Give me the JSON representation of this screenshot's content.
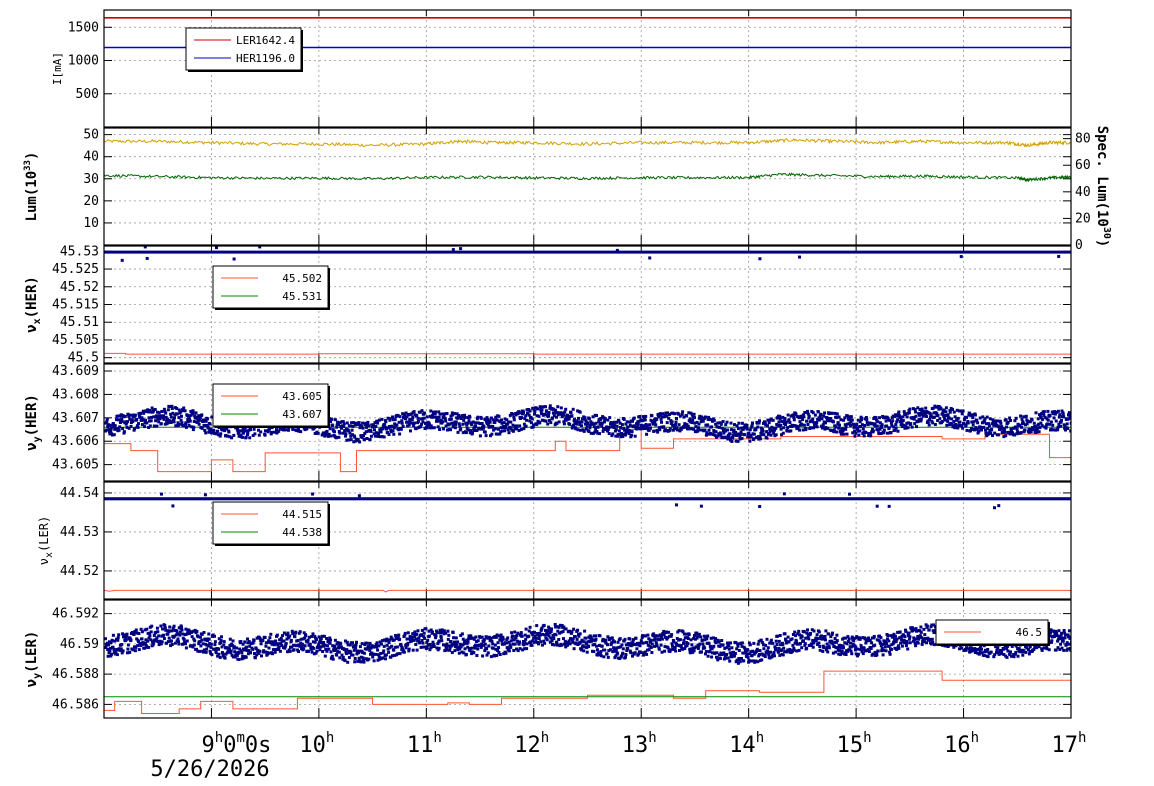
{
  "chart_data": {
    "type": "line",
    "x_axis": {
      "range": [
        8.0,
        17.0
      ],
      "ticks": [
        {
          "hour": 9,
          "label": "9",
          "sup": "h",
          "extra": "0",
          "extra_sup": "m",
          "extra2": "0s"
        },
        {
          "hour": 10,
          "label": "10",
          "sup": "h"
        },
        {
          "hour": 11,
          "label": "11",
          "sup": "h"
        },
        {
          "hour": 12,
          "label": "12",
          "sup": "h"
        },
        {
          "hour": 13,
          "label": "13",
          "sup": "h"
        },
        {
          "hour": 14,
          "label": "14",
          "sup": "h"
        },
        {
          "hour": 15,
          "label": "15",
          "sup": "h"
        },
        {
          "hour": 16,
          "label": "16",
          "sup": "h"
        },
        {
          "hour": 17,
          "label": "17",
          "sup": "h"
        }
      ],
      "date_label": "5/26/2026"
    },
    "panels": [
      {
        "id": "current",
        "ylabel": "I[mA]",
        "ylim": [
          0,
          1760
        ],
        "yticks": [
          500,
          1000,
          1500
        ],
        "ytick_labels": [
          "500",
          "1000",
          "1500"
        ],
        "legend": [
          {
            "name": "LER",
            "value": "1642.4",
            "color": "#cc0000"
          },
          {
            "name": "HER",
            "value": "1196.0",
            "color": "#0000cc"
          }
        ],
        "series": [
          {
            "name": "LER",
            "color": "#cc0000",
            "kind": "line",
            "points": [
              [
                8.0,
                1642
              ],
              [
                17.0,
                1642
              ]
            ]
          },
          {
            "name": "HER",
            "color": "#0000cc",
            "kind": "line",
            "points": [
              [
                8.0,
                1196
              ],
              [
                17.0,
                1196
              ]
            ]
          }
        ]
      },
      {
        "id": "luminosity",
        "ylabel": "Lum(10",
        "ylabel_sup": "33",
        "ylabel_end": ")",
        "ylim": [
          0,
          53
        ],
        "yticks": [
          10,
          20,
          30,
          40,
          50
        ],
        "ytick_labels": [
          "10",
          "20",
          "30",
          "40",
          "50"
        ],
        "y2label": "Spec. Lum(10",
        "y2label_sup": "30",
        "y2label_end": ")",
        "y2ticks": [
          0,
          20,
          40,
          60,
          80
        ],
        "y2tick_labels": [
          "0",
          "20",
          "40",
          "60",
          "80"
        ],
        "y2lim": [
          0,
          88
        ],
        "series": [
          {
            "name": "Spec. Lum",
            "color": "#d4a000",
            "kind": "line",
            "axis": "y2",
            "points": [
              [
                8.0,
                78
              ],
              [
                8.5,
                78
              ],
              [
                9.0,
                77
              ],
              [
                9.5,
                76
              ],
              [
                10.0,
                76
              ],
              [
                10.5,
                75
              ],
              [
                11.0,
                76
              ],
              [
                11.3,
                78
              ],
              [
                11.6,
                77
              ],
              [
                12.0,
                77
              ],
              [
                12.5,
                76
              ],
              [
                13.0,
                77
              ],
              [
                13.5,
                77
              ],
              [
                14.0,
                77
              ],
              [
                14.4,
                79
              ],
              [
                14.8,
                78
              ],
              [
                15.2,
                77
              ],
              [
                15.6,
                78
              ],
              [
                16.0,
                77
              ],
              [
                16.4,
                77
              ],
              [
                16.6,
                75
              ],
              [
                16.8,
                77
              ],
              [
                17.0,
                77
              ]
            ]
          },
          {
            "name": "Lum",
            "color": "#006600",
            "kind": "line",
            "axis": "y",
            "points": [
              [
                8.0,
                31.5
              ],
              [
                8.5,
                31.0
              ],
              [
                9.0,
                30.5
              ],
              [
                9.5,
                30.2
              ],
              [
                10.0,
                30.3
              ],
              [
                10.5,
                30.0
              ],
              [
                11.0,
                30.6
              ],
              [
                11.5,
                30.8
              ],
              [
                12.0,
                30.4
              ],
              [
                12.5,
                30.2
              ],
              [
                13.0,
                30.5
              ],
              [
                13.5,
                30.5
              ],
              [
                14.0,
                30.6
              ],
              [
                14.3,
                32.0
              ],
              [
                14.7,
                31.5
              ],
              [
                15.2,
                31.0
              ],
              [
                15.6,
                31.2
              ],
              [
                16.0,
                30.8
              ],
              [
                16.5,
                30.4
              ],
              [
                16.6,
                29.5
              ],
              [
                16.8,
                30.4
              ],
              [
                17.0,
                30.8
              ]
            ]
          }
        ]
      },
      {
        "id": "nux_her",
        "ylabel": "ν",
        "ylabel_sub": "x",
        "ylabel_end": "(HER)",
        "ylim": [
          45.4985,
          45.5315
        ],
        "yticks": [
          45.5,
          45.505,
          45.51,
          45.515,
          45.52,
          45.525,
          45.53
        ],
        "ytick_labels": [
          "45.5",
          "45.505",
          "45.51",
          "45.515",
          "45.52",
          "45.525",
          "45.53"
        ],
        "legend": [
          {
            "name": "",
            "value": "45.502",
            "color": "#ff5533"
          },
          {
            "name": "",
            "value": "45.531",
            "color": "#008800"
          }
        ],
        "series": [
          {
            "name": "set",
            "color": "#ff5533",
            "kind": "line",
            "points": [
              [
                8.0,
                45.5012
              ],
              [
                8.2,
                45.5012
              ],
              [
                8.2,
                45.501
              ],
              [
                10.0,
                45.501
              ],
              [
                10.0,
                45.5011
              ],
              [
                12.0,
                45.5011
              ],
              [
                12.0,
                45.501
              ],
              [
                17.0,
                45.501
              ]
            ]
          },
          {
            "name": "measured",
            "color": "#000080",
            "kind": "band",
            "center": 45.5298,
            "spread": 0.0004
          }
        ]
      },
      {
        "id": "nuy_her",
        "ylabel": "ν",
        "ylabel_sub": "y",
        "ylabel_end": "(HER)",
        "ylim": [
          43.6043,
          43.6093
        ],
        "yticks": [
          43.605,
          43.606,
          43.607,
          43.608,
          43.609
        ],
        "ytick_labels": [
          "43.605",
          "43.606",
          "43.607",
          "43.608",
          "43.609"
        ],
        "legend": [
          {
            "name": "",
            "value": "43.605",
            "color": "#ff5533"
          },
          {
            "name": "",
            "value": "43.607",
            "color": "#008800"
          }
        ],
        "series": [
          {
            "name": "set",
            "color": "#ff5533",
            "kind": "line",
            "points": [
              [
                8.0,
                43.6059
              ],
              [
                8.25,
                43.6059
              ],
              [
                8.25,
                43.6056
              ],
              [
                8.5,
                43.6056
              ],
              [
                8.5,
                43.6047
              ],
              [
                9.0,
                43.6047
              ],
              [
                9.0,
                43.6052
              ],
              [
                9.2,
                43.6052
              ],
              [
                9.2,
                43.6047
              ],
              [
                9.5,
                43.6047
              ],
              [
                9.5,
                43.6055
              ],
              [
                10.2,
                43.6055
              ],
              [
                10.2,
                43.6047
              ],
              [
                10.35,
                43.6047
              ],
              [
                10.35,
                43.6056
              ],
              [
                12.2,
                43.6056
              ],
              [
                12.2,
                43.606
              ],
              [
                12.3,
                43.606
              ],
              [
                12.3,
                43.6056
              ],
              [
                12.8,
                43.6056
              ],
              [
                12.8,
                43.6065
              ],
              [
                13.0,
                43.6065
              ],
              [
                13.0,
                43.6057
              ],
              [
                13.3,
                43.6057
              ],
              [
                13.3,
                43.6061
              ],
              [
                14.3,
                43.6061
              ],
              [
                14.3,
                43.6062
              ],
              [
                15.8,
                43.6062
              ],
              [
                15.8,
                43.6061
              ],
              [
                16.2,
                43.6061
              ],
              [
                16.2,
                43.6063
              ],
              [
                16.8,
                43.6063
              ],
              [
                16.8,
                43.6053
              ],
              [
                17.0,
                43.6053
              ]
            ]
          },
          {
            "name": "ref",
            "color": "#008800",
            "kind": "line",
            "points": [
              [
                8.0,
                43.6066
              ],
              [
                17.0,
                43.6066
              ]
            ]
          },
          {
            "name": "measured",
            "color": "#000080",
            "kind": "scatter_wave",
            "center": 43.6068,
            "spread": 0.0006
          }
        ]
      },
      {
        "id": "nux_ler",
        "ylabel": "ν",
        "ylabel_sub": "x",
        "ylabel_end": "(LER)",
        "ylim": [
          44.5128,
          44.5428
        ],
        "yticks": [
          44.52,
          44.53,
          44.54
        ],
        "ytick_labels": [
          "44.52",
          "44.53",
          "44.54"
        ],
        "legend": [
          {
            "name": "",
            "value": "44.515",
            "color": "#ff5533"
          },
          {
            "name": "",
            "value": "44.538",
            "color": "#008800"
          }
        ],
        "series": [
          {
            "name": "set",
            "color": "#ff5533",
            "kind": "line",
            "points": [
              [
                8.0,
                44.515
              ],
              [
                8.05,
                44.5148
              ],
              [
                8.1,
                44.515
              ],
              [
                10.6,
                44.515
              ],
              [
                10.62,
                44.5146
              ],
              [
                10.65,
                44.515
              ],
              [
                17.0,
                44.515
              ]
            ]
          },
          {
            "name": "measured",
            "color": "#000080",
            "kind": "band",
            "center": 44.5385,
            "spread": 0.0004
          }
        ]
      },
      {
        "id": "nuy_ler",
        "ylabel": "ν",
        "ylabel_sub": "y",
        "ylabel_end": "(LER)",
        "ylim": [
          46.5851,
          46.5929
        ],
        "yticks": [
          46.586,
          46.588,
          46.59,
          46.592
        ],
        "ytick_labels": [
          "46.586",
          "46.588",
          "46.59",
          "46.592"
        ],
        "legend": [
          {
            "name": "",
            "value": "46.5",
            "color": "#ff5533"
          }
        ],
        "series": [
          {
            "name": "set",
            "color": "#ff5533",
            "kind": "line",
            "points": [
              [
                8.0,
                46.5856
              ],
              [
                8.1,
                46.5856
              ],
              [
                8.1,
                46.5862
              ],
              [
                8.35,
                46.5862
              ],
              [
                8.35,
                46.5854
              ],
              [
                8.7,
                46.5854
              ],
              [
                8.7,
                46.5857
              ],
              [
                8.9,
                46.5857
              ],
              [
                8.9,
                46.5862
              ],
              [
                9.2,
                46.5862
              ],
              [
                9.2,
                46.5857
              ],
              [
                9.8,
                46.5857
              ],
              [
                9.8,
                46.5864
              ],
              [
                10.5,
                46.5864
              ],
              [
                10.5,
                46.586
              ],
              [
                11.2,
                46.586
              ],
              [
                11.2,
                46.5861
              ],
              [
                11.4,
                46.5861
              ],
              [
                11.4,
                46.586
              ],
              [
                11.7,
                46.586
              ],
              [
                11.7,
                46.5864
              ],
              [
                12.5,
                46.5864
              ],
              [
                12.5,
                46.5866
              ],
              [
                13.3,
                46.5866
              ],
              [
                13.3,
                46.5864
              ],
              [
                13.6,
                46.5864
              ],
              [
                13.6,
                46.5869
              ],
              [
                14.1,
                46.5869
              ],
              [
                14.1,
                46.5868
              ],
              [
                14.7,
                46.5868
              ],
              [
                14.7,
                46.5882
              ],
              [
                15.8,
                46.5882
              ],
              [
                15.8,
                46.5876
              ],
              [
                17.0,
                46.5876
              ]
            ]
          },
          {
            "name": "ref",
            "color": "#008800",
            "kind": "line",
            "points": [
              [
                8.0,
                46.5865
              ],
              [
                17.0,
                46.5865
              ]
            ]
          },
          {
            "name": "measured",
            "color": "#000080",
            "kind": "scatter_wave",
            "center": 46.5901,
            "spread": 0.001
          }
        ]
      }
    ]
  }
}
